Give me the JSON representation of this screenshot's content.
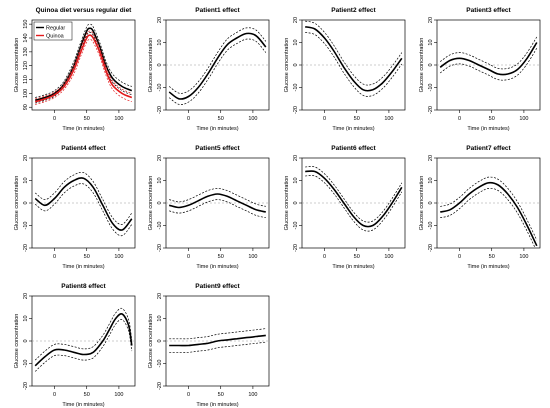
{
  "chart_data": [
    {
      "type": "line",
      "title": "Quinoa diet versus regular diet",
      "xlabel": "Time (in minutes)",
      "ylabel": "Glucose concentration",
      "xlim": [
        -35,
        125
      ],
      "ylim": [
        88,
        153
      ],
      "xticks": [
        0,
        50,
        100
      ],
      "yticks": [
        90,
        100,
        110,
        120,
        130,
        140,
        150
      ],
      "legend": {
        "position": "top-left",
        "entries": [
          "Regular",
          "Quinoa"
        ]
      },
      "x": [
        -30,
        -15,
        0,
        15,
        30,
        40,
        50,
        55,
        60,
        70,
        80,
        90,
        105,
        120
      ],
      "series": [
        {
          "name": "Regular",
          "color": "#000000",
          "values": [
            95,
            97,
            100,
            107,
            120,
            133,
            145,
            147,
            145,
            134,
            120,
            111,
            105,
            102
          ],
          "lower": [
            93,
            95,
            98,
            105,
            117,
            130,
            142,
            144,
            142,
            131,
            117,
            108,
            102,
            99
          ],
          "upper": [
            97,
            99,
            102,
            109,
            123,
            136,
            148,
            150,
            148,
            137,
            123,
            114,
            108,
            105
          ]
        },
        {
          "name": "Quinoa",
          "color": "#e31a1c",
          "values": [
            94,
            96,
            99,
            105,
            117,
            129,
            140,
            142,
            140,
            130,
            116,
            106,
            100,
            97
          ],
          "lower": [
            92,
            94,
            97,
            103,
            114,
            126,
            137,
            139,
            137,
            127,
            113,
            103,
            97,
            94
          ],
          "upper": [
            96,
            98,
            101,
            107,
            120,
            132,
            143,
            145,
            143,
            133,
            119,
            109,
            103,
            100
          ]
        }
      ]
    },
    {
      "type": "line",
      "title": "Patient1 effect",
      "xlabel": "Time (in minutes)",
      "ylabel": "Glucose concentration",
      "xlim": [
        -35,
        125
      ],
      "ylim": [
        -20,
        20
      ],
      "xticks": [
        0,
        50,
        100
      ],
      "yticks": [
        -20,
        -10,
        0,
        10,
        20
      ],
      "x": [
        -30,
        -15,
        0,
        15,
        30,
        45,
        60,
        75,
        90,
        105,
        120
      ],
      "values": [
        -12,
        -15,
        -14,
        -10,
        -4,
        3,
        9,
        12,
        14,
        13,
        8
      ],
      "band": 2.5
    },
    {
      "type": "line",
      "title": "Patient2 effect",
      "xlabel": "Time (in minutes)",
      "ylabel": "Glucose concentration",
      "xlim": [
        -35,
        125
      ],
      "ylim": [
        -20,
        20
      ],
      "xticks": [
        0,
        50,
        100
      ],
      "yticks": [
        -20,
        -10,
        0,
        10,
        20
      ],
      "x": [
        -30,
        -15,
        0,
        15,
        30,
        45,
        60,
        75,
        90,
        105,
        120
      ],
      "values": [
        17,
        16,
        12,
        6,
        -1,
        -7,
        -11,
        -11,
        -8,
        -3,
        3
      ],
      "band": 2.5
    },
    {
      "type": "line",
      "title": "Patient3 effect",
      "xlabel": "Time (in minutes)",
      "ylabel": "Glucose concentration",
      "xlim": [
        -35,
        125
      ],
      "ylim": [
        -20,
        20
      ],
      "xticks": [
        0,
        50,
        100
      ],
      "yticks": [
        -20,
        -10,
        0,
        10,
        20
      ],
      "x": [
        -30,
        -15,
        0,
        15,
        30,
        45,
        60,
        75,
        90,
        105,
        120
      ],
      "values": [
        -1,
        2,
        3,
        2,
        0,
        -2,
        -4,
        -4,
        -2,
        3,
        10
      ],
      "band": 2.5
    },
    {
      "type": "line",
      "title": "Patient4 effect",
      "xlabel": "Time (in minutes)",
      "ylabel": "Glucose concentration",
      "xlim": [
        -35,
        125
      ],
      "ylim": [
        -20,
        20
      ],
      "xticks": [
        0,
        50,
        100
      ],
      "yticks": [
        -20,
        -10,
        0,
        10,
        20
      ],
      "x": [
        -30,
        -15,
        0,
        15,
        30,
        45,
        60,
        75,
        90,
        105,
        120
      ],
      "values": [
        2,
        -1,
        2,
        7,
        10,
        11,
        7,
        -1,
        -9,
        -12,
        -7
      ],
      "band": 2.5
    },
    {
      "type": "line",
      "title": "Patient5 effect",
      "xlabel": "Time (in minutes)",
      "ylabel": "Glucose concentration",
      "xlim": [
        -35,
        125
      ],
      "ylim": [
        -20,
        20
      ],
      "xticks": [
        0,
        50,
        100
      ],
      "yticks": [
        -20,
        -10,
        0,
        10,
        20
      ],
      "x": [
        -30,
        -15,
        0,
        15,
        30,
        45,
        60,
        75,
        90,
        105,
        120
      ],
      "values": [
        -1,
        -2,
        -1,
        1,
        3,
        4,
        3,
        1,
        -1,
        -3,
        -4
      ],
      "band": 2.5
    },
    {
      "type": "line",
      "title": "Patient6 effect",
      "xlabel": "Time (in minutes)",
      "ylabel": "Glucose concentration",
      "xlim": [
        -35,
        125
      ],
      "ylim": [
        -20,
        20
      ],
      "xticks": [
        0,
        50,
        100
      ],
      "yticks": [
        -20,
        -10,
        0,
        10,
        20
      ],
      "x": [
        -30,
        -15,
        0,
        15,
        30,
        45,
        60,
        75,
        90,
        105,
        120
      ],
      "values": [
        14,
        14,
        11,
        6,
        0,
        -6,
        -10,
        -10,
        -6,
        0,
        7
      ],
      "band": 2.0
    },
    {
      "type": "line",
      "title": "Patient7 effect",
      "xlabel": "Time (in minutes)",
      "ylabel": "Glucose concentration",
      "xlim": [
        -35,
        125
      ],
      "ylim": [
        -20,
        20
      ],
      "xticks": [
        0,
        50,
        100
      ],
      "yticks": [
        -20,
        -10,
        0,
        10,
        20
      ],
      "x": [
        -30,
        -15,
        0,
        15,
        30,
        45,
        60,
        75,
        90,
        105,
        120
      ],
      "values": [
        -4,
        -3,
        0,
        4,
        7,
        9,
        8,
        4,
        -2,
        -10,
        -19
      ],
      "band": 2.5
    },
    {
      "type": "line",
      "title": "Patient8 effect",
      "xlabel": "Time (in minutes)",
      "ylabel": "Glucose concentration",
      "xlim": [
        -35,
        125
      ],
      "ylim": [
        -20,
        20
      ],
      "xticks": [
        0,
        50,
        100
      ],
      "yticks": [
        -20,
        -10,
        0,
        10,
        20
      ],
      "x": [
        -30,
        -15,
        0,
        15,
        30,
        45,
        60,
        75,
        85,
        95,
        105,
        115,
        120
      ],
      "values": [
        -11,
        -7,
        -4,
        -4,
        -5,
        -6,
        -5,
        0,
        5,
        10,
        12,
        7,
        -2
      ],
      "band": 2.5
    },
    {
      "type": "line",
      "title": "Patient9 effect",
      "xlabel": "Time (in minutes)",
      "ylabel": "Glucose concentration",
      "xlim": [
        -35,
        125
      ],
      "ylim": [
        -20,
        20
      ],
      "xticks": [
        0,
        50,
        100
      ],
      "yticks": [
        -20,
        -10,
        0,
        10,
        20
      ],
      "x": [
        -30,
        -15,
        0,
        15,
        30,
        45,
        60,
        75,
        90,
        105,
        120
      ],
      "values": [
        -2,
        -2,
        -2,
        -1.5,
        -1,
        0,
        0.5,
        1,
        1.5,
        2,
        2.5
      ],
      "band": 3.0
    }
  ]
}
